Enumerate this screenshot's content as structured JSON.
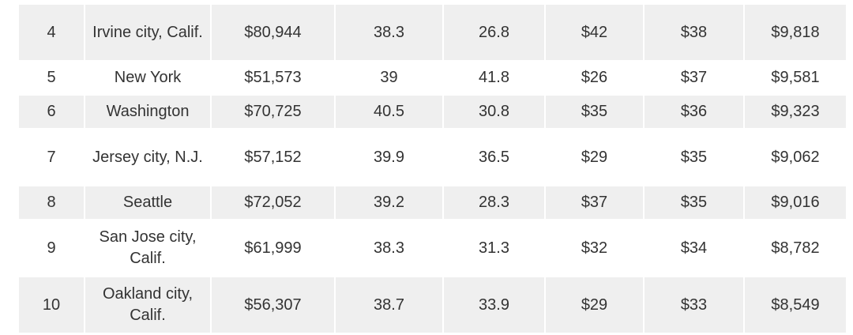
{
  "table": {
    "rows": [
      [
        "4",
        "Irvine city, Calif.",
        "$80,944",
        "38.3",
        "26.8",
        "$42",
        "$38",
        "$9,818"
      ],
      [
        "5",
        "New York",
        "$51,573",
        "39",
        "41.8",
        "$26",
        "$37",
        "$9,581"
      ],
      [
        "6",
        "Washington",
        "$70,725",
        "40.5",
        "30.8",
        "$35",
        "$36",
        "$9,323"
      ],
      [
        "7",
        "Jersey city, N.J.",
        "$57,152",
        "39.9",
        "36.5",
        "$29",
        "$35",
        "$9,062"
      ],
      [
        "8",
        "Seattle",
        "$72,052",
        "39.2",
        "28.3",
        "$37",
        "$35",
        "$9,016"
      ],
      [
        "9",
        "San Jose city, Calif.",
        "$61,999",
        "38.3",
        "31.3",
        "$32",
        "$34",
        "$8,782"
      ],
      [
        "10",
        "Oakland city, Calif.",
        "$56,307",
        "38.7",
        "33.9",
        "$29",
        "$33",
        "$8,549"
      ]
    ]
  }
}
